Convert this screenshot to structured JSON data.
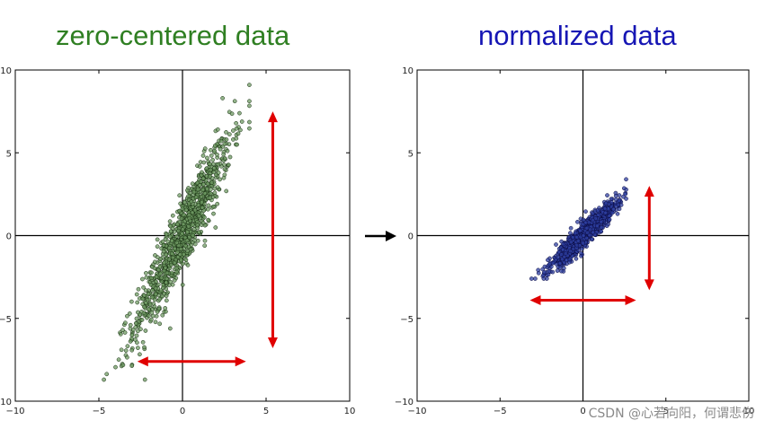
{
  "colors": {
    "left_title": "#2f7f22",
    "right_title": "#1616b4",
    "left_points_fill": "#6f9a63",
    "left_points_stroke": "#122a0c",
    "right_points_fill": "#2d3fa0",
    "right_points_stroke": "#0a0a40",
    "arrows": "#e00000",
    "transition_arrow": "#000000"
  },
  "icons": {
    "transition_arrow": "right-arrow-icon"
  },
  "watermark": "CSDN @心若向阳，何谓悲伤",
  "chart_data": [
    {
      "type": "scatter",
      "title": "zero-centered data",
      "xlim": [
        -10,
        10
      ],
      "ylim": [
        -10,
        10
      ],
      "xticks": [
        -10,
        -5,
        0,
        5,
        10
      ],
      "yticks": [
        -10,
        -5,
        0,
        5,
        10
      ],
      "xtick_labels": [
        "−10",
        "−5",
        "0",
        "5",
        "10"
      ],
      "ytick_labels": [
        "−10",
        "−5",
        "0",
        "5",
        "10"
      ],
      "distribution": {
        "center": [
          0,
          0
        ],
        "x_range": [
          -4.7,
          4.0
        ],
        "y_range": [
          -8.7,
          9.1
        ],
        "correlation": 0.93,
        "n_points": 1000
      },
      "arrows": [
        {
          "orientation": "vertical",
          "x": 5.4,
          "from": -6.8,
          "to": 7.5
        },
        {
          "orientation": "horizontal",
          "y": -7.6,
          "from": -2.7,
          "to": 3.8
        }
      ],
      "grid": false
    },
    {
      "type": "scatter",
      "title": "normalized data",
      "xlim": [
        -10,
        10
      ],
      "ylim": [
        -10,
        10
      ],
      "xticks": [
        -10,
        -5,
        0,
        5,
        10
      ],
      "yticks": [
        -10,
        -5,
        0,
        5,
        10
      ],
      "xtick_labels": [
        "−10",
        "−5",
        "0",
        "5",
        "10"
      ],
      "ytick_labels": [
        "−10",
        "−5",
        "0",
        "5",
        "10"
      ],
      "distribution": {
        "center": [
          0,
          0
        ],
        "x_range": [
          -3.2,
          2.6
        ],
        "y_range": [
          -2.6,
          3.4
        ],
        "correlation": 0.93,
        "n_points": 1000
      },
      "arrows": [
        {
          "orientation": "vertical",
          "x": 4.0,
          "from": -3.3,
          "to": 3.0
        },
        {
          "orientation": "horizontal",
          "y": -3.9,
          "from": -3.2,
          "to": 3.2
        }
      ],
      "grid": false
    }
  ]
}
